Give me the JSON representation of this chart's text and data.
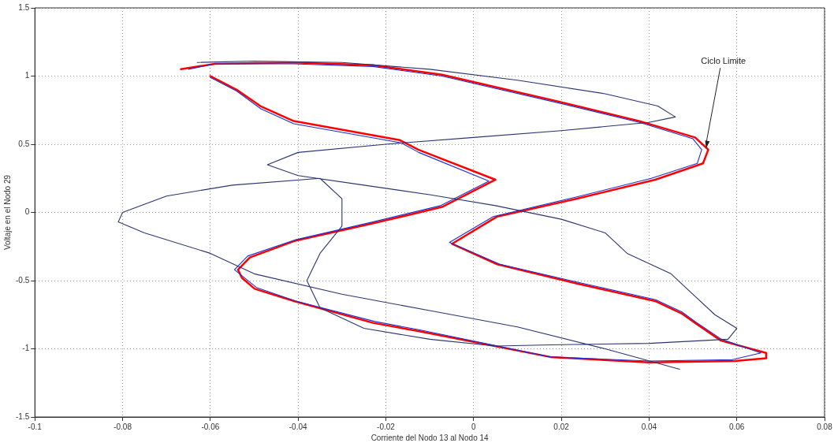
{
  "chart_data": {
    "type": "line",
    "xlabel": "Corriente del Nodo 13 al Nodo 14",
    "ylabel": "Voltaje en el Nodo 29",
    "xlim": [
      -0.1,
      0.08
    ],
    "xticks": [
      -0.1,
      -0.08,
      -0.06,
      -0.04,
      -0.02,
      0,
      0.02,
      0.04,
      0.06,
      0.08
    ],
    "ylim": [
      -1.5,
      1.5
    ],
    "yticks": [
      -1.5,
      -1,
      -0.5,
      0,
      0.5,
      1,
      1.5
    ],
    "grid": true,
    "legend": false,
    "line_style": "solid",
    "marker": "none",
    "annotations": [
      {
        "text": "Ciclo Limite",
        "x": 0.053,
        "y": 0.47
      }
    ],
    "series": [
      {
        "color": "#2a3570",
        "x": [
          -0.063,
          -0.05,
          -0.03,
          -0.01,
          0.01,
          0.03,
          0.042,
          0.046,
          0.04,
          0.02,
          0.0,
          -0.02,
          -0.04,
          -0.047,
          -0.04,
          -0.025,
          -0.01,
          0.005,
          0.02,
          0.03,
          0.035,
          0.045,
          0.05,
          0.055,
          0.06,
          0.058,
          0.04,
          0.02,
          0.005,
          -0.01,
          -0.025,
          -0.035,
          -0.038,
          -0.035,
          -0.03,
          -0.03,
          -0.035,
          -0.055,
          -0.07,
          -0.08,
          -0.081,
          -0.075,
          -0.06,
          -0.05,
          -0.03,
          -0.01,
          0.01,
          0.03,
          0.047
        ],
        "values": [
          1.1,
          1.11,
          1.1,
          1.05,
          0.97,
          0.87,
          0.78,
          0.7,
          0.66,
          0.6,
          0.55,
          0.5,
          0.44,
          0.35,
          0.27,
          0.2,
          0.13,
          0.05,
          -0.05,
          -0.15,
          -0.3,
          -0.45,
          -0.6,
          -0.75,
          -0.85,
          -0.93,
          -0.96,
          -0.97,
          -0.98,
          -0.93,
          -0.85,
          -0.7,
          -0.5,
          -0.3,
          -0.1,
          0.1,
          0.25,
          0.2,
          0.12,
          0.0,
          -0.07,
          -0.15,
          -0.3,
          -0.45,
          -0.6,
          -0.72,
          -0.84,
          -1.0,
          -1.15
        ]
      },
      {
        "color": "#1f2fd0",
        "x": [
          -0.065,
          -0.059,
          -0.041,
          -0.0229,
          -0.0072,
          0.0198,
          0.0378,
          0.05,
          0.052,
          0.051,
          0.0405,
          0.023,
          0.0045,
          -0.0055,
          0.006,
          0.0235,
          0.0415,
          0.0475,
          0.0505,
          0.0565,
          0.0655,
          0.059,
          0.04,
          0.0175,
          -0.0125,
          -0.0225,
          -0.0405,
          -0.0495,
          -0.0545,
          -0.0515,
          -0.0405,
          -0.023,
          -0.0075,
          0.0035,
          -0.0125,
          -0.0165,
          -0.041,
          -0.0485,
          -0.054,
          -0.06
        ],
        "values": [
          1.05,
          1.09,
          1.09,
          1.07,
          1.0,
          0.8,
          0.66,
          0.54,
          0.46,
          0.36,
          0.25,
          0.11,
          -0.03,
          -0.22,
          -0.38,
          -0.51,
          -0.64,
          -0.73,
          -0.8,
          -0.93,
          -1.03,
          -1.08,
          -1.09,
          -1.06,
          -0.86,
          -0.8,
          -0.65,
          -0.55,
          -0.42,
          -0.32,
          -0.2,
          -0.07,
          0.05,
          0.23,
          0.44,
          0.51,
          0.65,
          0.76,
          0.89,
          0.99
        ]
      },
      {
        "color": "#ff0000",
        "x": [
          -0.0667,
          -0.059,
          -0.041,
          -0.0229,
          -0.0072,
          0.0198,
          0.0378,
          0.0505,
          0.0535,
          0.0523,
          0.0414,
          0.0234,
          0.0054,
          -0.0049,
          0.0054,
          0.0234,
          0.0414,
          0.0474,
          0.0505,
          0.0564,
          0.0667,
          0.0667,
          0.0595,
          0.04,
          0.0175,
          -0.0126,
          -0.0229,
          -0.0409,
          -0.0499,
          -0.0528,
          -0.0537,
          -0.051,
          -0.0409,
          -0.0229,
          -0.0072,
          0.005,
          -0.0126,
          -0.0168,
          -0.041,
          -0.0486,
          -0.054,
          -0.06
        ],
        "values": [
          1.05,
          1.09,
          1.1,
          1.08,
          1.01,
          0.81,
          0.67,
          0.55,
          0.46,
          0.36,
          0.24,
          0.1,
          -0.03,
          -0.23,
          -0.38,
          -0.52,
          -0.65,
          -0.74,
          -0.81,
          -0.94,
          -1.03,
          -1.07,
          -1.09,
          -1.1,
          -1.06,
          -0.87,
          -0.81,
          -0.65,
          -0.56,
          -0.48,
          -0.42,
          -0.33,
          -0.21,
          -0.08,
          0.04,
          0.24,
          0.46,
          0.53,
          0.67,
          0.78,
          0.9,
          1.0
        ]
      }
    ]
  }
}
